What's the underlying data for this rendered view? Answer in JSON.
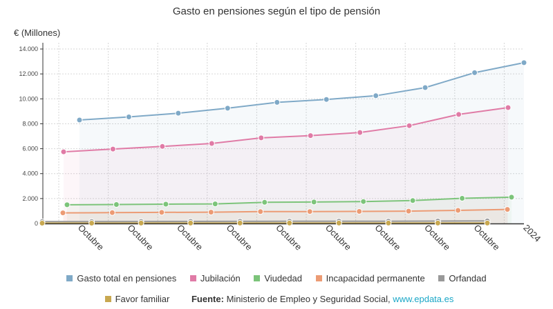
{
  "chart_data": {
    "type": "line",
    "title": "Gasto en pensiones según el tipo de pensión",
    "ylabel": "€ (Millones)",
    "xlabel": "",
    "ylim": [
      0,
      14500
    ],
    "yticks": [
      "0",
      "2.000",
      "4.000",
      "6.000",
      "8.000",
      "10.000",
      "12.000",
      "14.000"
    ],
    "categories": [
      "Octubre",
      "Octubre",
      "Octubre",
      "Octubre",
      "Octubre",
      "Octubre",
      "Octubre",
      "Octubre",
      "Octubre",
      "2024"
    ],
    "grid": true,
    "legend_position": "bottom",
    "series": [
      {
        "name": "Gasto total en pensiones",
        "color": "#7fa9c7",
        "values": [
          8300,
          8550,
          8850,
          9250,
          9720,
          9950,
          10250,
          10900,
          12100,
          12900
        ]
      },
      {
        "name": "Jubilación",
        "color": "#e07ba6",
        "values": [
          5750,
          5970,
          6180,
          6420,
          6870,
          7050,
          7300,
          7850,
          8750,
          9300
        ]
      },
      {
        "name": "Viudedad",
        "color": "#7cc47a",
        "values": [
          1500,
          1520,
          1550,
          1570,
          1700,
          1720,
          1760,
          1840,
          2020,
          2110
        ]
      },
      {
        "name": "Incapacidad permanente",
        "color": "#ec9b74",
        "values": [
          850,
          870,
          890,
          910,
          950,
          960,
          970,
          990,
          1050,
          1130
        ]
      },
      {
        "name": "Orfandad",
        "color": "#999999",
        "values": [
          150,
          155,
          160,
          165,
          172,
          175,
          180,
          185,
          195,
          205
        ]
      },
      {
        "name": "Favor familiar",
        "color": "#c8a850",
        "values": [
          30,
          30,
          31,
          31,
          32,
          32,
          33,
          33,
          34,
          35
        ]
      }
    ]
  },
  "source": {
    "label": "Fuente:",
    "text": "Ministerio de Empleo y Seguridad Social,",
    "link": "www.epdata.es"
  }
}
